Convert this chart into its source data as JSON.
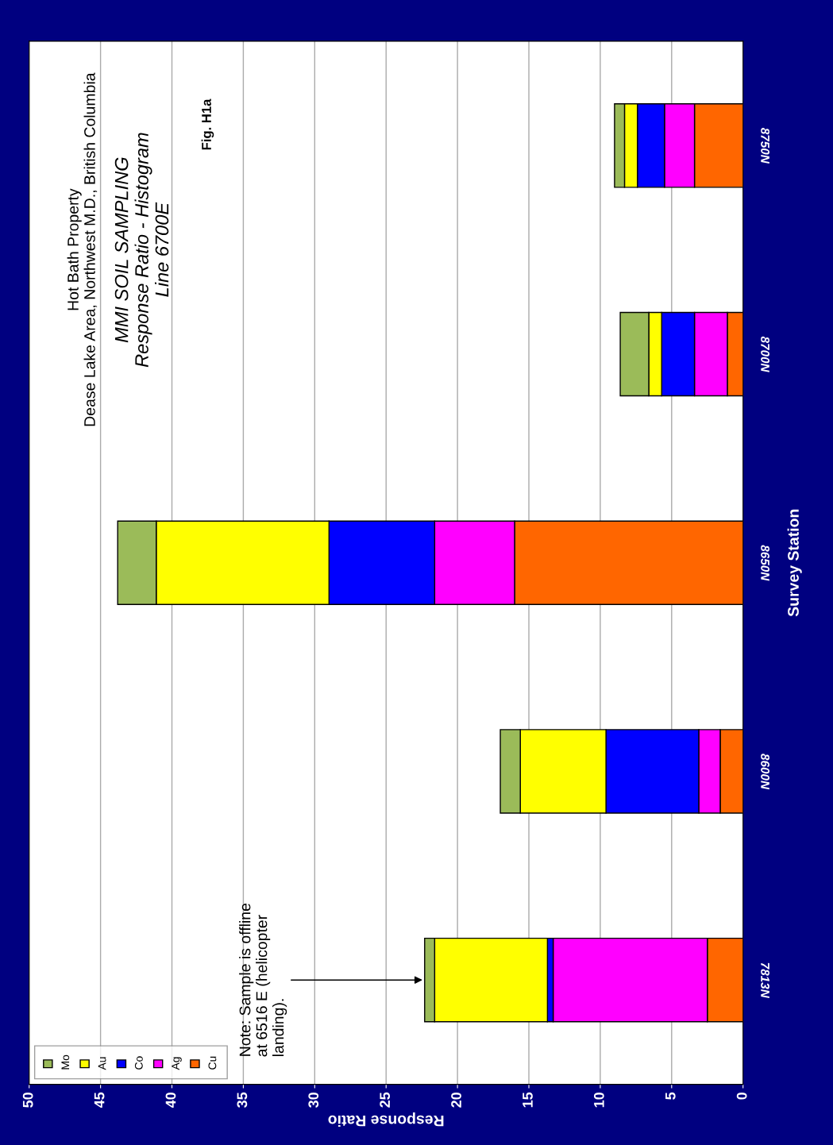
{
  "chart_data": {
    "type": "bar",
    "orientation": "horizontal",
    "stacked": true,
    "title": "Hot Bath Property\nDease Lake Area, Northwest M.D., British Columbia",
    "subtitle": "MMI SOIL SAMPLING\nResponse Ratio - Histogram\nLine 6700E",
    "xlabel": "Response Ratio",
    "ylabel": "Survey Station",
    "categories": [
      "8750N",
      "8700N",
      "8650N",
      "8600N",
      "7813N"
    ],
    "series": [
      {
        "name": "Cu",
        "color": "#ff6600",
        "values": [
          3.4,
          1.1,
          16.0,
          1.6,
          2.5
        ]
      },
      {
        "name": "Ag",
        "color": "#ff00ff",
        "values": [
          2.1,
          2.3,
          5.6,
          1.5,
          10.8
        ]
      },
      {
        "name": "Co",
        "color": "#0000ff",
        "values": [
          1.9,
          2.3,
          7.4,
          6.5,
          0.4
        ]
      },
      {
        "name": "Au",
        "color": "#ffff00",
        "values": [
          0.9,
          0.9,
          12.1,
          6.0,
          7.9
        ]
      },
      {
        "name": "Mo",
        "color": "#9bbb59",
        "values": [
          0.7,
          2.0,
          2.7,
          1.4,
          0.7
        ]
      }
    ],
    "xlim": [
      50,
      0
    ],
    "xticks": [
      50,
      45,
      40,
      35,
      30,
      25,
      20,
      15,
      10,
      5,
      0
    ],
    "grid": "x",
    "legend": "bottom left",
    "annotations": [
      {
        "text": "Note: Sample is offline\nat 6516 E (helicopter\nlanding).",
        "x": 22.3,
        "y": "7813N"
      },
      "Fig. H1a"
    ]
  }
}
